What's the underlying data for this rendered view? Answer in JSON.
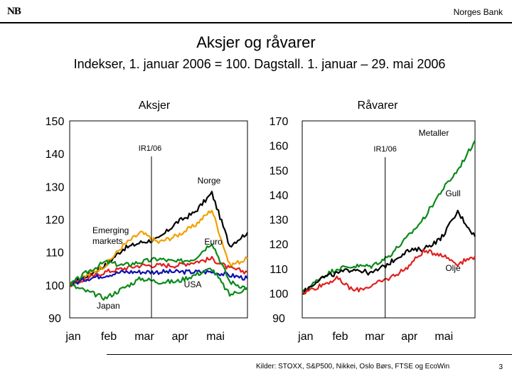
{
  "header": {
    "logo_text": "NB",
    "bank_name": "Norges Bank"
  },
  "title": "Aksjer og råvarer",
  "subtitle": "Indekser, 1. januar 2006 = 100. Dagstall. 1. januar – 29. mai 2006",
  "footer": {
    "source": "Kilder: STOXX, S&P500, Nikkei, Oslo Børs, FTSE og EcoWin",
    "page": "3"
  },
  "colors": {
    "black": "#000000",
    "orange": "#f0a000",
    "red": "#e02020",
    "blue": "#1010b0",
    "green": "#0a8a1a"
  },
  "chart_data": [
    {
      "type": "line",
      "title": "Aksjer",
      "ylim": [
        90,
        150
      ],
      "yticks": [
        "150",
        "140",
        "130",
        "120",
        "110",
        "100",
        "90"
      ],
      "xticks": [
        "jan",
        "feb",
        "mar",
        "apr",
        "mai"
      ],
      "marker": {
        "label": "IR1/06",
        "x": 2.3
      },
      "x": [
        0,
        0.5,
        1,
        1.5,
        2,
        2.5,
        3,
        3.5,
        4,
        4.5,
        5
      ],
      "series": [
        {
          "name": "Norge",
          "color": "#000000",
          "values": [
            100,
            103,
            106,
            111,
            113,
            114,
            119,
            122,
            128,
            112,
            116
          ]
        },
        {
          "name": "Euro",
          "color": "#f0a000",
          "values": [
            100,
            103,
            106,
            112,
            116,
            113,
            115,
            118,
            123,
            106,
            108
          ]
        },
        {
          "name": "USA",
          "color": "#e02020",
          "values": [
            100,
            102,
            104,
            105,
            106,
            106,
            106,
            107,
            108,
            105,
            104
          ]
        },
        {
          "name": "",
          "color": "#1010b0",
          "values": [
            100,
            102,
            103,
            104,
            104,
            104,
            104,
            104,
            104,
            103,
            102
          ]
        },
        {
          "name": "Emerging markets",
          "color": "#0a8a1a",
          "values": [
            100,
            104,
            107,
            106,
            107,
            108,
            107,
            108,
            113,
            101,
            99
          ]
        },
        {
          "name": "Japan",
          "color": "#0a8a1a",
          "values": [
            100,
            98,
            96,
            99,
            102,
            101,
            101,
            103,
            105,
            97,
            99
          ]
        }
      ],
      "labels": [
        "Norge",
        "Euro",
        "USA",
        "Emerging markets",
        "Japan"
      ]
    },
    {
      "type": "line",
      "title": "Råvarer",
      "ylim": [
        90,
        170
      ],
      "yticks": [
        "170",
        "160",
        "150",
        "140",
        "130",
        "120",
        "110",
        "100",
        "90"
      ],
      "xticks": [
        "jan",
        "feb",
        "mar",
        "apr",
        "mai"
      ],
      "marker": {
        "label": "IR1/06",
        "x": 2.4
      },
      "x": [
        0,
        0.5,
        1,
        1.5,
        2,
        2.5,
        3,
        3.5,
        4,
        4.5,
        5
      ],
      "series": [
        {
          "name": "Metaller",
          "color": "#0a8a1a",
          "values": [
            100,
            106,
            110,
            111,
            111,
            115,
            122,
            130,
            141,
            150,
            162
          ]
        },
        {
          "name": "Gull",
          "color": "#000000",
          "values": [
            100,
            106,
            108,
            110,
            108,
            112,
            117,
            118,
            122,
            133,
            123
          ]
        },
        {
          "name": "Olje",
          "color": "#e02020",
          "values": [
            100,
            103,
            106,
            101,
            103,
            106,
            110,
            117,
            116,
            112,
            115
          ]
        }
      ],
      "labels": [
        "Metaller",
        "Gull",
        "Olje"
      ]
    }
  ]
}
